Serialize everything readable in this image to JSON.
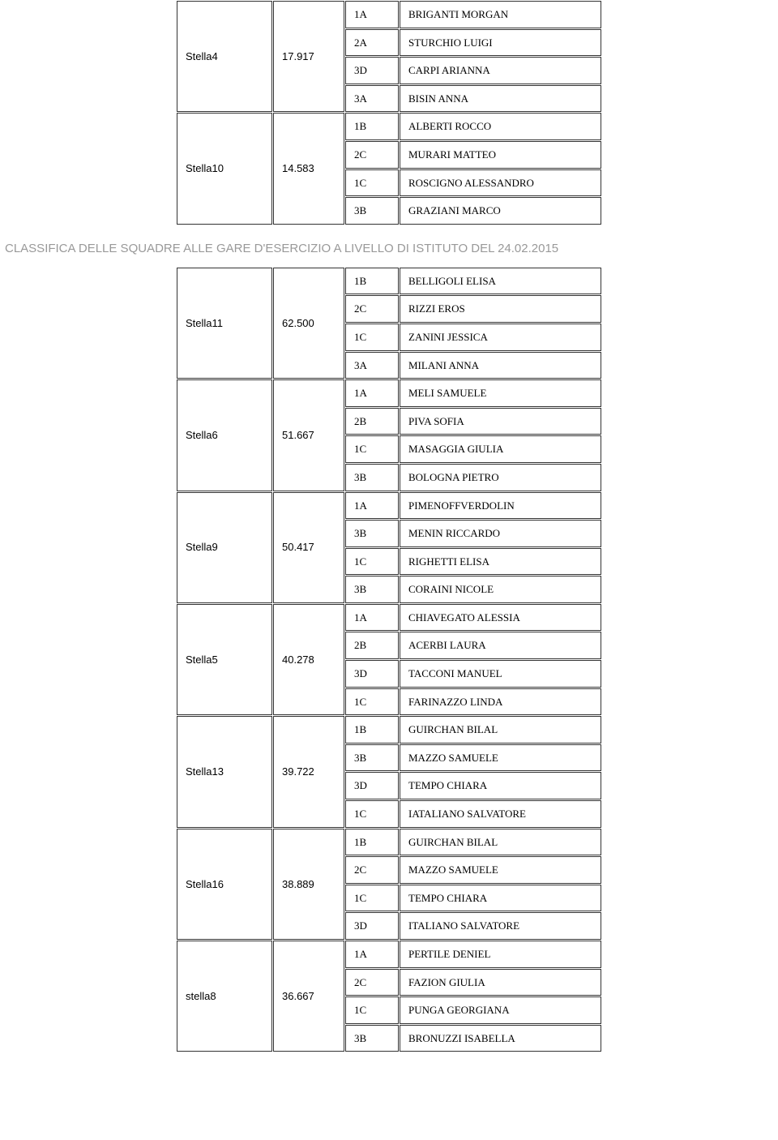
{
  "heading": "CLASSIFICA DELLE SQUADRE ALLE GARE D'ESERCIZIO A LIVELLO DI ISTITUTO DEL 24.02.2015",
  "table1": {
    "groups": [
      {
        "team": "Stella4",
        "score": "17.917",
        "members": [
          {
            "code": "1A",
            "name": "BRIGANTI MORGAN"
          },
          {
            "code": "2A",
            "name": "STURCHIO LUIGI"
          },
          {
            "code": "3D",
            "name": "CARPI ARIANNA"
          },
          {
            "code": "3A",
            "name": "BISIN ANNA"
          }
        ]
      },
      {
        "team": "Stella10",
        "score": "14.583",
        "members": [
          {
            "code": "1B",
            "name": "ALBERTI ROCCO"
          },
          {
            "code": "2C",
            "name": "MURARI MATTEO"
          },
          {
            "code": "1C",
            "name": "ROSCIGNO ALESSANDRO"
          },
          {
            "code": "3B",
            "name": "GRAZIANI MARCO"
          }
        ]
      }
    ]
  },
  "table2": {
    "groups": [
      {
        "team": "Stella11",
        "score": "62.500",
        "members": [
          {
            "code": "1B",
            "name": "BELLIGOLI ELISA"
          },
          {
            "code": "2C",
            "name": "RIZZI EROS"
          },
          {
            "code": "1C",
            "name": "ZANINI JESSICA"
          },
          {
            "code": "3A",
            "name": "MILANI ANNA"
          }
        ]
      },
      {
        "team": "Stella6",
        "score": "51.667",
        "members": [
          {
            "code": "1A",
            "name": "MELI SAMUELE"
          },
          {
            "code": "2B",
            "name": "PIVA SOFIA"
          },
          {
            "code": "1C",
            "name": "MASAGGIA GIULIA"
          },
          {
            "code": "3B",
            "name": "BOLOGNA PIETRO"
          }
        ]
      },
      {
        "team": "Stella9",
        "score": "50.417",
        "members": [
          {
            "code": "1A",
            "name": "PIMENOFFVERDOLIN"
          },
          {
            "code": "3B",
            "name": "MENIN RICCARDO"
          },
          {
            "code": "1C",
            "name": "RIGHETTI ELISA"
          },
          {
            "code": "3B",
            "name": "CORAINI NICOLE"
          }
        ]
      },
      {
        "team": "Stella5",
        "score": "40.278",
        "members": [
          {
            "code": "1A",
            "name": "CHIAVEGATO ALESSIA"
          },
          {
            "code": "2B",
            "name": "ACERBI LAURA"
          },
          {
            "code": "3D",
            "name": "TACCONI MANUEL"
          },
          {
            "code": "1C",
            "name": "FARINAZZO LINDA"
          }
        ]
      },
      {
        "team": "Stella13",
        "score": "39.722",
        "members": [
          {
            "code": "1B",
            "name": "GUIRCHAN BILAL"
          },
          {
            "code": "3B",
            "name": "MAZZO SAMUELE"
          },
          {
            "code": "3D",
            "name": "TEMPO CHIARA"
          },
          {
            "code": "1C",
            "name": "IATALIANO SALVATORE"
          }
        ]
      },
      {
        "team": "Stella16",
        "score": "38.889",
        "members": [
          {
            "code": "1B",
            "name": "GUIRCHAN BILAL"
          },
          {
            "code": "2C",
            "name": "MAZZO SAMUELE"
          },
          {
            "code": "1C",
            "name": "TEMPO CHIARA"
          },
          {
            "code": "3D",
            "name": "ITALIANO SALVATORE"
          }
        ]
      },
      {
        "team": "stella8",
        "score": "36.667",
        "members": [
          {
            "code": "1A",
            "name": "PERTILE DENIEL"
          },
          {
            "code": "2C",
            "name": "FAZION GIULIA"
          },
          {
            "code": "1C",
            "name": "PUNGA GEORGIANA"
          },
          {
            "code": "3B",
            "name": "BRONUZZI ISABELLA"
          }
        ]
      }
    ]
  }
}
